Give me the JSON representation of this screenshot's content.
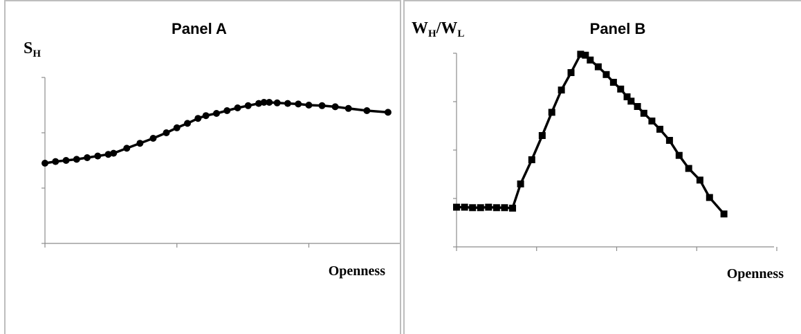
{
  "chart_data": [
    {
      "type": "line",
      "title": "Panel A",
      "ylabel": "S",
      "ylabel_sub": "H",
      "xlabel": "Openness",
      "xlim": [
        0,
        27
      ],
      "ylim": [
        0,
        3
      ],
      "x_ticks": [
        0,
        10,
        20
      ],
      "y_ticks": [
        0,
        1,
        2,
        3
      ],
      "grid": false,
      "legend": "none",
      "marker": "circle",
      "color": "#000000",
      "series": [
        {
          "x": [
            0.0,
            0.8,
            1.6,
            2.4,
            3.2,
            4.0,
            4.8,
            5.2,
            6.2,
            7.2,
            8.2,
            9.2,
            10.0,
            10.8,
            11.6,
            12.2,
            13.0,
            13.8,
            14.6,
            15.4,
            16.2,
            16.6,
            17.0,
            17.6,
            18.4,
            19.2,
            20.0,
            21.0,
            22.0,
            23.0,
            24.4,
            26.0
          ],
          "y": [
            1.45,
            1.48,
            1.5,
            1.52,
            1.55,
            1.58,
            1.61,
            1.63,
            1.72,
            1.81,
            1.9,
            2.0,
            2.09,
            2.17,
            2.26,
            2.31,
            2.35,
            2.4,
            2.45,
            2.49,
            2.53,
            2.55,
            2.55,
            2.54,
            2.53,
            2.52,
            2.5,
            2.49,
            2.47,
            2.44,
            2.4,
            2.37
          ]
        }
      ]
    },
    {
      "type": "line",
      "title": "Panel B",
      "ylabel": "W",
      "ylabel_sub": "H",
      "ylabel_sep": "/W",
      "ylabel_sub2": "L",
      "xlabel": "Openness",
      "xlim": [
        0,
        40
      ],
      "ylim": [
        0,
        4
      ],
      "x_ticks": [
        0,
        10,
        20,
        30,
        40
      ],
      "y_ticks": [
        0,
        1,
        2,
        3,
        4
      ],
      "grid": false,
      "legend": "none",
      "marker": "square",
      "color": "#000000",
      "series": [
        {
          "x": [
            0.0,
            1.0,
            2.0,
            3.0,
            4.0,
            5.0,
            6.0,
            7.0,
            8.0,
            9.4,
            10.7,
            11.9,
            13.1,
            14.3,
            15.5,
            16.1,
            16.7,
            17.7,
            18.7,
            19.6,
            20.5,
            21.3,
            21.8,
            22.6,
            23.4,
            24.4,
            25.4,
            26.6,
            27.8,
            29.0,
            30.4,
            31.6,
            33.4
          ],
          "y": [
            0.82,
            0.82,
            0.81,
            0.81,
            0.82,
            0.81,
            0.81,
            0.8,
            1.3,
            1.8,
            2.3,
            2.78,
            3.24,
            3.6,
            3.98,
            3.96,
            3.86,
            3.72,
            3.56,
            3.4,
            3.26,
            3.1,
            3.01,
            2.9,
            2.76,
            2.6,
            2.43,
            2.2,
            1.89,
            1.62,
            1.38,
            1.02,
            0.68
          ]
        }
      ]
    }
  ]
}
